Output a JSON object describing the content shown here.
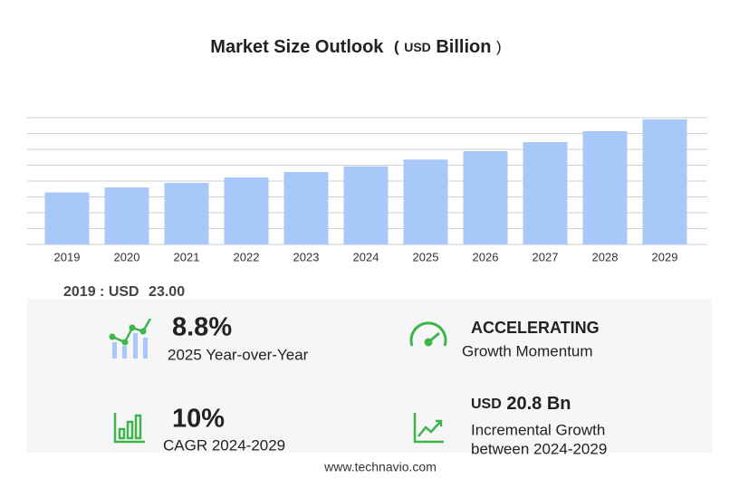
{
  "chart_data": {
    "type": "bar",
    "title": "Market Size Outlook",
    "unit": {
      "open": "(",
      "currency": "USD",
      "name": "Billion",
      "close": ")"
    },
    "categories": [
      "2019",
      "2020",
      "2021",
      "2022",
      "2023",
      "2024",
      "2025",
      "2026",
      "2027",
      "2028",
      "2029"
    ],
    "values": [
      23.0,
      25.2,
      27.2,
      29.6,
      32.0,
      34.5,
      37.5,
      41.2,
      45.2,
      50.0,
      55.3
    ],
    "color": "#a8c8fa",
    "ylim": [
      0,
      56
    ],
    "yticks": [
      0,
      7,
      14,
      21,
      28,
      35,
      42,
      49,
      56
    ],
    "grid": true
  },
  "summary": {
    "base": {
      "label": "2019 : USD",
      "value": "23.00"
    },
    "yoy": {
      "value": "8.8%",
      "label": "2025 Year-over-Year"
    },
    "momentum": {
      "value": "ACCELERATING",
      "label": "Growth Momentum"
    },
    "cagr": {
      "value": "10%",
      "label": "CAGR 2024-2029"
    },
    "incremental": {
      "currency": "USD",
      "value": "20.8 Bn",
      "label": "Incremental Growth",
      "label2": "between 2024-2029"
    },
    "source": "www.technavio.com"
  }
}
